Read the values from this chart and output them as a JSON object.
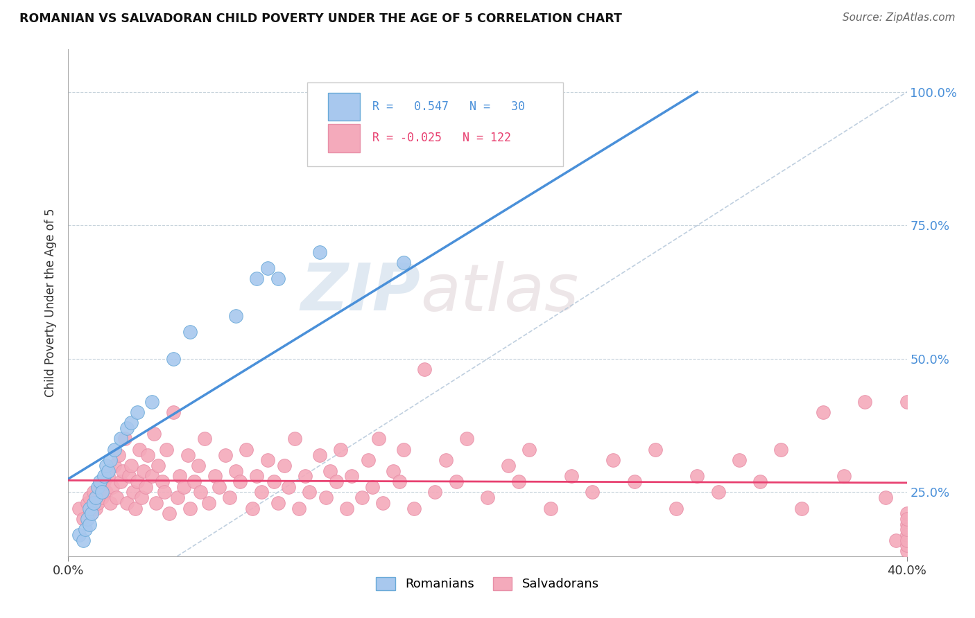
{
  "title": "ROMANIAN VS SALVADORAN CHILD POVERTY UNDER THE AGE OF 5 CORRELATION CHART",
  "source": "Source: ZipAtlas.com",
  "ylabel": "Child Poverty Under the Age of 5",
  "ytick_labels": [
    "25.0%",
    "50.0%",
    "75.0%",
    "100.0%"
  ],
  "ytick_vals": [
    0.25,
    0.5,
    0.75,
    1.0
  ],
  "xlim": [
    0.0,
    0.4
  ],
  "ylim": [
    0.13,
    1.08
  ],
  "r_romanian": 0.547,
  "n_romanian": 30,
  "r_salvadoran": -0.025,
  "n_salvadoran": 122,
  "color_romanian": "#A8C8EE",
  "color_salvadoran": "#F4AABB",
  "color_romanian_line": "#4A90D9",
  "color_salvadoran_line": "#E84070",
  "color_diagonal": "#B0C4D8",
  "watermark_zip": "ZIP",
  "watermark_atlas": "atlas",
  "legend_r1": "R =   0.547   N =   30",
  "legend_r2": "R = -0.025   N = 122",
  "romanian_x": [
    0.005,
    0.007,
    0.008,
    0.009,
    0.01,
    0.01,
    0.011,
    0.012,
    0.013,
    0.014,
    0.015,
    0.016,
    0.017,
    0.018,
    0.019,
    0.02,
    0.022,
    0.025,
    0.028,
    0.03,
    0.033,
    0.04,
    0.05,
    0.058,
    0.08,
    0.09,
    0.095,
    0.1,
    0.12,
    0.16
  ],
  "romanian_y": [
    0.17,
    0.16,
    0.18,
    0.2,
    0.22,
    0.19,
    0.21,
    0.23,
    0.24,
    0.26,
    0.27,
    0.25,
    0.28,
    0.3,
    0.29,
    0.31,
    0.33,
    0.35,
    0.37,
    0.38,
    0.4,
    0.42,
    0.5,
    0.55,
    0.58,
    0.65,
    0.67,
    0.65,
    0.7,
    0.68
  ],
  "salvadoran_x": [
    0.005,
    0.007,
    0.009,
    0.01,
    0.011,
    0.012,
    0.013,
    0.014,
    0.015,
    0.016,
    0.017,
    0.018,
    0.019,
    0.02,
    0.021,
    0.022,
    0.023,
    0.024,
    0.025,
    0.026,
    0.027,
    0.028,
    0.029,
    0.03,
    0.031,
    0.032,
    0.033,
    0.034,
    0.035,
    0.036,
    0.037,
    0.038,
    0.04,
    0.041,
    0.042,
    0.043,
    0.045,
    0.046,
    0.047,
    0.048,
    0.05,
    0.052,
    0.053,
    0.055,
    0.057,
    0.058,
    0.06,
    0.062,
    0.063,
    0.065,
    0.067,
    0.07,
    0.072,
    0.075,
    0.077,
    0.08,
    0.082,
    0.085,
    0.088,
    0.09,
    0.092,
    0.095,
    0.098,
    0.1,
    0.103,
    0.105,
    0.108,
    0.11,
    0.113,
    0.115,
    0.12,
    0.123,
    0.125,
    0.128,
    0.13,
    0.133,
    0.135,
    0.14,
    0.143,
    0.145,
    0.148,
    0.15,
    0.155,
    0.158,
    0.16,
    0.165,
    0.17,
    0.175,
    0.18,
    0.185,
    0.19,
    0.2,
    0.21,
    0.215,
    0.22,
    0.23,
    0.24,
    0.25,
    0.26,
    0.27,
    0.28,
    0.29,
    0.3,
    0.31,
    0.32,
    0.33,
    0.34,
    0.35,
    0.36,
    0.37,
    0.38,
    0.39,
    0.395,
    0.4,
    0.4,
    0.4,
    0.4,
    0.4,
    0.4,
    0.4,
    0.4,
    0.4
  ],
  "salvadoran_y": [
    0.22,
    0.2,
    0.23,
    0.24,
    0.21,
    0.25,
    0.22,
    0.23,
    0.26,
    0.24,
    0.27,
    0.25,
    0.28,
    0.23,
    0.26,
    0.3,
    0.24,
    0.32,
    0.27,
    0.29,
    0.35,
    0.23,
    0.28,
    0.3,
    0.25,
    0.22,
    0.27,
    0.33,
    0.24,
    0.29,
    0.26,
    0.32,
    0.28,
    0.36,
    0.23,
    0.3,
    0.27,
    0.25,
    0.33,
    0.21,
    0.4,
    0.24,
    0.28,
    0.26,
    0.32,
    0.22,
    0.27,
    0.3,
    0.25,
    0.35,
    0.23,
    0.28,
    0.26,
    0.32,
    0.24,
    0.29,
    0.27,
    0.33,
    0.22,
    0.28,
    0.25,
    0.31,
    0.27,
    0.23,
    0.3,
    0.26,
    0.35,
    0.22,
    0.28,
    0.25,
    0.32,
    0.24,
    0.29,
    0.27,
    0.33,
    0.22,
    0.28,
    0.24,
    0.31,
    0.26,
    0.35,
    0.23,
    0.29,
    0.27,
    0.33,
    0.22,
    0.48,
    0.25,
    0.31,
    0.27,
    0.35,
    0.24,
    0.3,
    0.27,
    0.33,
    0.22,
    0.28,
    0.25,
    0.31,
    0.27,
    0.33,
    0.22,
    0.28,
    0.25,
    0.31,
    0.27,
    0.33,
    0.22,
    0.4,
    0.28,
    0.42,
    0.24,
    0.16,
    0.14,
    0.42,
    0.15,
    0.19,
    0.17,
    0.21,
    0.16,
    0.18,
    0.2
  ]
}
